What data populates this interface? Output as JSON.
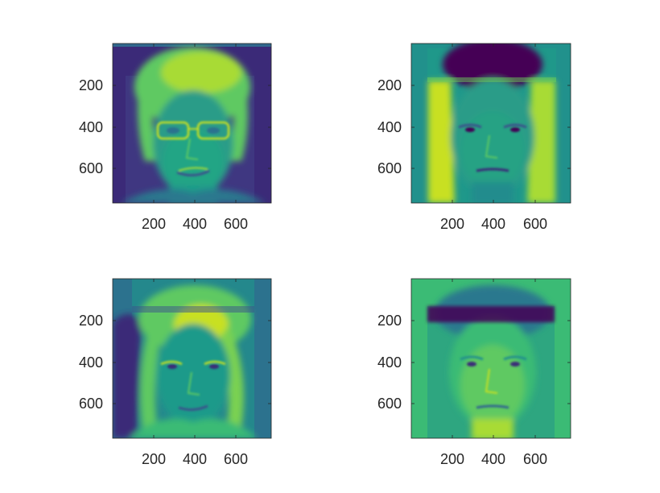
{
  "figure": {
    "background": "#ffffff",
    "axis_color": "#262626",
    "colormap": "viridis"
  },
  "chart_data": [
    {
      "type": "heatmap",
      "position": "top-left",
      "content": "grayscale face image rendered with viridis colormap (person with glasses)",
      "xlim": [
        0,
        768
      ],
      "ylim": [
        0,
        768
      ],
      "y_reversed": true,
      "xticks": [
        200,
        400,
        600
      ],
      "yticks": [
        200,
        400,
        600
      ],
      "xtick_labels": [
        "200",
        "400",
        "600"
      ],
      "ytick_labels": [
        "200",
        "400",
        "600"
      ],
      "title": "",
      "xlabel": "",
      "ylabel": "",
      "dominant_colors": [
        "#3b2a78",
        "#21918c",
        "#5ec962",
        "#c8e020"
      ]
    },
    {
      "type": "heatmap",
      "position": "top-right",
      "content": "grayscale face image rendered with viridis colormap (short dark hair)",
      "xlim": [
        0,
        768
      ],
      "ylim": [
        0,
        768
      ],
      "y_reversed": true,
      "xticks": [
        200,
        400,
        600
      ],
      "yticks": [
        200,
        400,
        600
      ],
      "xtick_labels": [
        "200",
        "400",
        "600"
      ],
      "ytick_labels": [
        "200",
        "400",
        "600"
      ],
      "title": "",
      "xlabel": "",
      "ylabel": "",
      "dominant_colors": [
        "#21918c",
        "#440154",
        "#3bbb75",
        "#c8e020"
      ]
    },
    {
      "type": "heatmap",
      "position": "bottom-left",
      "content": "grayscale face image rendered with viridis colormap (long hair)",
      "xlim": [
        0,
        768
      ],
      "ylim": [
        0,
        768
      ],
      "y_reversed": true,
      "xticks": [
        200,
        400,
        600
      ],
      "yticks": [
        200,
        400,
        600
      ],
      "xtick_labels": [
        "200",
        "400",
        "600"
      ],
      "ytick_labels": [
        "200",
        "400",
        "600"
      ],
      "title": "",
      "xlabel": "",
      "ylabel": "",
      "dominant_colors": [
        "#2c728e",
        "#3b2a78",
        "#5ec962",
        "#c8e020"
      ]
    },
    {
      "type": "heatmap",
      "position": "bottom-right",
      "content": "grayscale face image rendered with viridis colormap (fringe hair)",
      "xlim": [
        0,
        768
      ],
      "ylim": [
        0,
        768
      ],
      "y_reversed": true,
      "xticks": [
        200,
        400,
        600
      ],
      "yticks": [
        200,
        400,
        600
      ],
      "xtick_labels": [
        "200",
        "400",
        "600"
      ],
      "ytick_labels": [
        "200",
        "400",
        "600"
      ],
      "title": "",
      "xlabel": "",
      "ylabel": "",
      "dominant_colors": [
        "#3bbb75",
        "#440154",
        "#21918c",
        "#a8db34"
      ]
    }
  ]
}
